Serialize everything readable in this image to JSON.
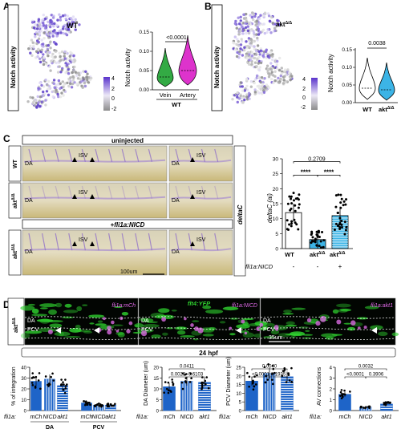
{
  "panel_A": {
    "letter": "A",
    "sidebar": "Notch activity",
    "umap_label": "WT",
    "colorbar_ticks": [
      "4",
      "2",
      "0",
      "-2"
    ],
    "violin_ylabel": "Notch activity",
    "violin_yticks": [
      "0.00",
      "0.05",
      "0.10",
      "0.15"
    ],
    "violin_categories": [
      "Vein",
      "Artery"
    ],
    "violin_group": "WT",
    "violin_pvalue": "<0.0001",
    "colors": {
      "vein": "#33aa44",
      "artery": "#dd33cc"
    }
  },
  "panel_B": {
    "letter": "B",
    "sidebar": "Notch activity",
    "umap_label": "akt",
    "umap_label_sup": "Δ/Δ",
    "colorbar_ticks": [
      "4",
      "2",
      "0",
      "-2"
    ],
    "violin_ylabel": "Notch activity",
    "violin_yticks": [
      "0.00",
      "0.05",
      "0.10",
      "0.15"
    ],
    "violin_categories": [
      "WT",
      "akt"
    ],
    "violin_cat_sup": "Δ/Δ",
    "violin_pvalue": "0.0038",
    "colors": {
      "wt": "#ffffff",
      "akt": "#3cb4e6"
    }
  },
  "panel_C": {
    "letter": "C",
    "header_uninjected": "uninjected",
    "header_nicd": "+fli1a:NICD",
    "row_labels": [
      "WT",
      "akt",
      "akt"
    ],
    "row_label_sup": "Δ/Δ",
    "probe": "deltaC",
    "da": "DA",
    "isv": "ISV",
    "scalebar": "100um",
    "chart_ylabel": "deltaC (ai)",
    "chart_yticks": [
      "0",
      "5",
      "10",
      "15",
      "20",
      "25",
      "30"
    ],
    "chart_categories": [
      "WT",
      "akt",
      "akt"
    ],
    "chart_cat_sup": "Δ/Δ",
    "pvalue_top": "0.2709",
    "stars_left": "****",
    "stars_right": "****",
    "nicd_row_label": "fli1a:NICD",
    "nicd_signs": [
      "-",
      "-",
      "+"
    ]
  },
  "panel_D": {
    "letter": "D",
    "row_label": "akt",
    "row_label_sup": "Δ/Δ",
    "top_label": "flt4:YFP",
    "image_labels": [
      "fli1a:mCh",
      "fli1a:NICD",
      "fli1a:akt1"
    ],
    "da": "DA",
    "pcv": "PCV",
    "scalebar": "35um",
    "stage": "24 hpf",
    "fli1a_label": "fli1a:",
    "chart1_ylabel": "% of integration",
    "chart1_yticks": [
      "0",
      "10",
      "20",
      "30",
      "40"
    ],
    "chart1_groups": [
      "DA",
      "PCV"
    ],
    "chart2_ylabel": "DA Diameter (um)",
    "chart2_yticks": [
      "0",
      "5",
      "10",
      "15",
      "20"
    ],
    "chart2_pvals": [
      "0.0023",
      "0.6103",
      "0.0411"
    ],
    "chart3_ylabel": "PCV Diameter (um)",
    "chart3_yticks": [
      "0",
      "5",
      "10",
      "15",
      "20",
      "25"
    ],
    "chart3_pvals": [
      "<0.0001",
      "0.1935",
      "0.0040"
    ],
    "chart4_ylabel": "AV connections",
    "chart4_yticks": [
      "0",
      "1",
      "2",
      "3",
      "4"
    ],
    "chart4_pvals": [
      "<0.0001",
      "0.3906",
      "0.0032"
    ],
    "categories": [
      "mCh",
      "NICD",
      "akt1"
    ]
  },
  "chart_data": [
    {
      "type": "bar",
      "id": "C_deltaC",
      "ylabel": "deltaC (ai)",
      "ylim": [
        0,
        30
      ],
      "categories": [
        "WT",
        "aktΔ/Δ",
        "aktΔ/Δ + fli1a:NICD"
      ],
      "values": [
        12,
        3,
        11
      ]
    },
    {
      "type": "bar",
      "id": "D_integration",
      "ylabel": "% of integration",
      "ylim": [
        0,
        40
      ],
      "categories": [
        "DA mCh",
        "DA NICD",
        "DA akt1",
        "PCV mCh",
        "PCV NICD",
        "PCV akt1"
      ],
      "values": [
        27,
        29,
        23,
        7,
        5,
        5
      ]
    },
    {
      "type": "bar",
      "id": "D_DA_diameter",
      "ylabel": "DA Diameter (um)",
      "ylim": [
        0,
        20
      ],
      "categories": [
        "mCh",
        "NICD",
        "akt1"
      ],
      "values": [
        11,
        13.5,
        13
      ]
    },
    {
      "type": "bar",
      "id": "D_PCV_diameter",
      "ylabel": "PCV Diameter (um)",
      "ylim": [
        0,
        25
      ],
      "categories": [
        "mCh",
        "NICD",
        "akt1"
      ],
      "values": [
        17,
        21.5,
        19.5
      ]
    },
    {
      "type": "bar",
      "id": "D_AV_connections",
      "ylabel": "AV connections",
      "ylim": [
        0,
        4
      ],
      "categories": [
        "mCh",
        "NICD",
        "akt1"
      ],
      "values": [
        1.5,
        0.3,
        0.6
      ]
    }
  ]
}
